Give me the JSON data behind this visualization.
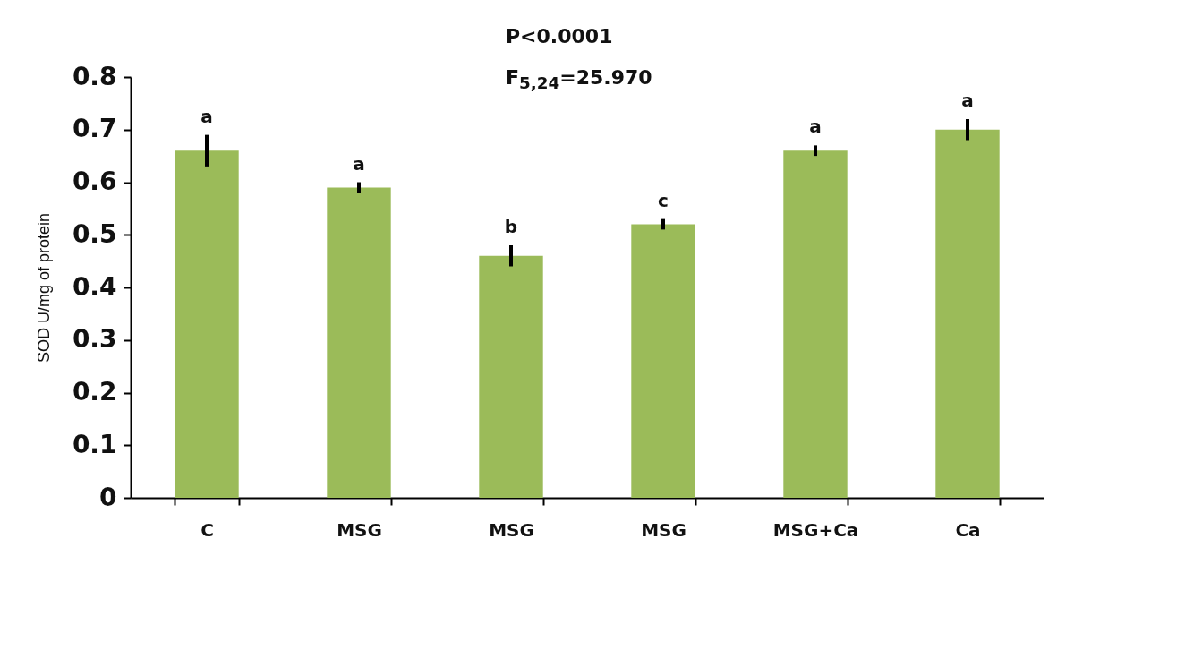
{
  "chart_data": {
    "type": "bar",
    "ylabel": "SOD U/mg of protein",
    "categories": [
      "C",
      "MSG",
      "MSG",
      "MSG",
      "MSG+Ca",
      "Ca"
    ],
    "values": [
      0.66,
      0.59,
      0.46,
      0.52,
      0.66,
      0.7
    ],
    "errors": [
      0.03,
      0.01,
      0.02,
      0.01,
      0.01,
      0.02
    ],
    "value_labels": [
      "a",
      "a",
      "b",
      "c",
      "a",
      "a"
    ],
    "color": "#9bbb59",
    "ylim": [
      0,
      0.8
    ],
    "yticks": [
      0,
      0.1,
      0.2,
      0.3,
      0.4,
      0.5,
      0.6,
      0.7,
      0.8
    ],
    "annotations": [
      "P<0.0001",
      "F$_{5,24}$=25.970"
    ]
  }
}
